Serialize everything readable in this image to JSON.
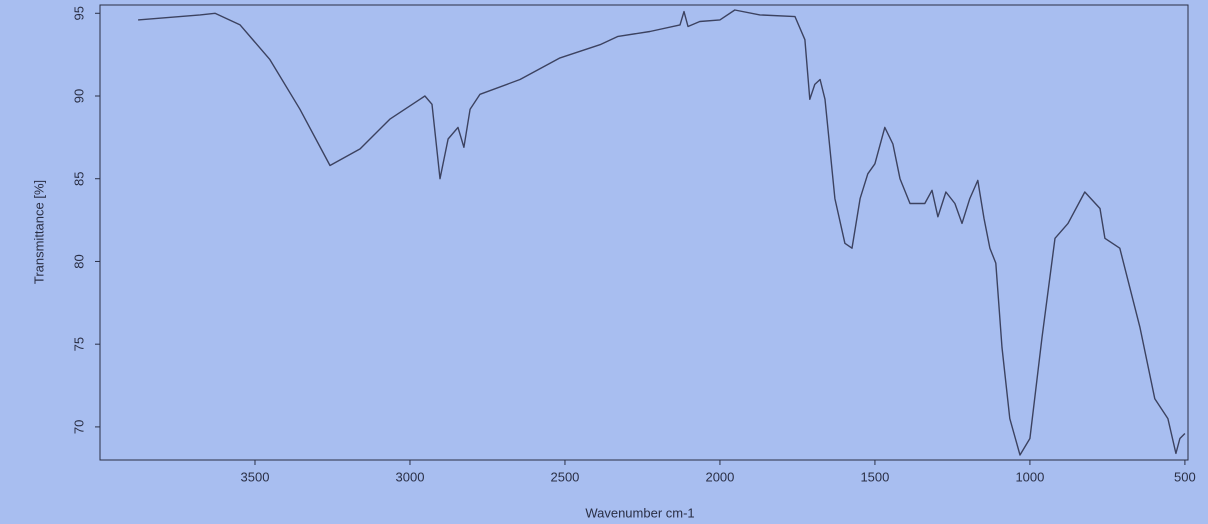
{
  "chart_data": {
    "type": "line",
    "x_label": "Wavenumber cm-1",
    "y_label": "Transmittance [%]",
    "x": [
      3877,
      3677,
      3629,
      3548,
      3452,
      3355,
      3258,
      3161,
      3065,
      2968,
      2952,
      2929,
      2903,
      2877,
      2845,
      2826,
      2806,
      2774,
      2645,
      2516,
      2387,
      2329,
      2226,
      2129,
      2116,
      2103,
      2065,
      2000,
      1952,
      1871,
      1758,
      1726,
      1710,
      1694,
      1677,
      1661,
      1629,
      1597,
      1574,
      1548,
      1523,
      1500,
      1468,
      1442,
      1419,
      1387,
      1339,
      1316,
      1297,
      1271,
      1242,
      1219,
      1194,
      1168,
      1148,
      1129,
      1110,
      1090,
      1065,
      1032,
      1000,
      961,
      919,
      877,
      823,
      774,
      758,
      710,
      645,
      597,
      555,
      529,
      516,
      500
    ],
    "values": [
      94.6,
      94.9,
      95.0,
      94.3,
      92.2,
      89.2,
      85.8,
      86.8,
      88.6,
      89.8,
      90.0,
      89.5,
      85.0,
      87.4,
      88.1,
      86.9,
      89.2,
      90.1,
      91.0,
      92.3,
      93.1,
      93.6,
      93.9,
      94.3,
      95.1,
      94.2,
      94.5,
      94.6,
      95.2,
      94.9,
      94.8,
      93.4,
      89.8,
      90.7,
      91.0,
      89.8,
      83.8,
      81.1,
      80.8,
      83.8,
      85.3,
      85.9,
      88.1,
      87.1,
      85.0,
      83.5,
      83.5,
      84.3,
      82.7,
      84.2,
      83.5,
      82.3,
      83.8,
      84.9,
      82.6,
      80.8,
      79.9,
      74.8,
      70.5,
      68.3,
      69.3,
      75.4,
      81.4,
      82.3,
      84.2,
      83.2,
      81.4,
      80.8,
      76.0,
      71.7,
      70.5,
      68.4,
      69.3,
      69.6
    ],
    "color": "#3c4260",
    "xlim": [
      4000,
      490
    ],
    "xticks": [
      3500,
      3000,
      2500,
      2000,
      1500,
      1000,
      500
    ],
    "ylim": [
      68,
      95.5
    ],
    "yticks": [
      70,
      75,
      80,
      85,
      90,
      95
    ],
    "grid": false
  }
}
